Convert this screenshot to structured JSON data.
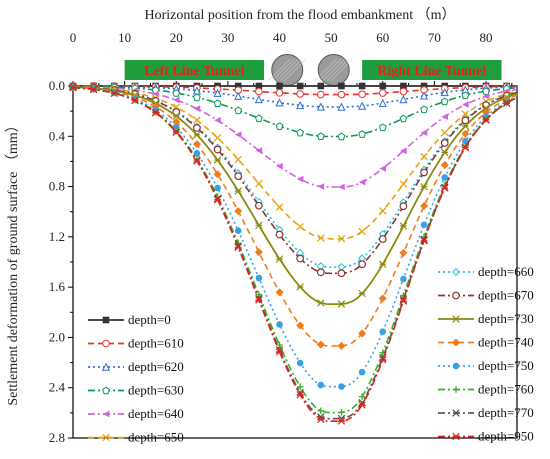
{
  "chart_data": {
    "type": "line",
    "title": "",
    "xlabel": "Horizontal position from the flood embankment （m）",
    "ylabel": "Settlement deformation of ground surface （mm）",
    "xlim": [
      0,
      86
    ],
    "ylim": [
      0,
      2.8
    ],
    "y_inverted": true,
    "x_axis_position": "top",
    "x_ticks": [
      "0",
      "10",
      "20",
      "30",
      "40",
      "50",
      "60",
      "70",
      "80"
    ],
    "y_ticks": [
      "0.0",
      "0.4",
      "0.8",
      "1.2",
      "1.6",
      "2.0",
      "2.4",
      "2.8"
    ],
    "grid": false,
    "legend_placement": "bottom-left and bottom-right",
    "annotations": [
      {
        "type": "box",
        "label": "Left Line Tunnel",
        "x": [
          10,
          37
        ],
        "color": "#1f9e3f"
      },
      {
        "type": "box",
        "label": "Right Line Tunnel",
        "x": [
          56,
          83
        ],
        "color": "#1f9e3f"
      },
      {
        "type": "tunnel",
        "x_center": 41.5,
        "diameter": 6
      },
      {
        "type": "tunnel",
        "x_center": 50.5,
        "diameter": 6
      }
    ],
    "trough_center_x": 51,
    "series": [
      {
        "name": "depth=0",
        "max_settlement": 0.0,
        "color": "#333333",
        "dash": "solid",
        "marker": "square"
      },
      {
        "name": "depth=610",
        "max_settlement": 0.07,
        "color": "#e8322b",
        "dash": "dashed",
        "marker": "circle-open"
      },
      {
        "name": "depth=620",
        "max_settlement": 0.17,
        "color": "#2f6fd6",
        "dash": "dotted",
        "marker": "triangle-open"
      },
      {
        "name": "depth=630",
        "max_settlement": 0.41,
        "color": "#0a9a53",
        "dash": "dashdot",
        "marker": "pentagon"
      },
      {
        "name": "depth=640",
        "max_settlement": 0.82,
        "color": "#cf63e0",
        "dash": "dashdot",
        "marker": "triangle-left"
      },
      {
        "name": "depth=650",
        "max_settlement": 1.24,
        "color": "#e8a30f",
        "dash": "dashed",
        "marker": "x"
      },
      {
        "name": "depth=660",
        "max_settlement": 1.47,
        "color": "#20c0e0",
        "dash": "dotted",
        "marker": "diamond"
      },
      {
        "name": "depth=670",
        "max_settlement": 1.52,
        "color": "#8c3232",
        "dash": "dashdot",
        "marker": "circle-half"
      },
      {
        "name": "depth=730",
        "max_settlement": 1.77,
        "color": "#8a8a10",
        "dash": "solid",
        "marker": "star"
      },
      {
        "name": "depth=740",
        "max_settlement": 2.11,
        "color": "#f07c1c",
        "dash": "dashed",
        "marker": "half-diamond"
      },
      {
        "name": "depth=750",
        "max_settlement": 2.44,
        "color": "#3aa0e6",
        "dash": "dotted",
        "marker": "circle"
      },
      {
        "name": "depth=760",
        "max_settlement": 2.65,
        "color": "#33b324",
        "dash": "dashdot",
        "marker": "plus"
      },
      {
        "name": "depth=770",
        "max_settlement": 2.7,
        "color": "#555555",
        "dash": "dashdot",
        "marker": "x"
      },
      {
        "name": "depth=950",
        "max_settlement": 2.72,
        "color": "#e0221e",
        "dash": "dashdot",
        "marker": "star6"
      }
    ],
    "legend_left": [
      "depth=0",
      "depth=610",
      "depth=620",
      "depth=630",
      "depth=640",
      "depth=650"
    ],
    "legend_right": [
      "depth=660",
      "depth=670",
      "depth=730",
      "depth=740",
      "depth=750",
      "depth=760",
      "depth=770",
      "depth=950"
    ]
  }
}
